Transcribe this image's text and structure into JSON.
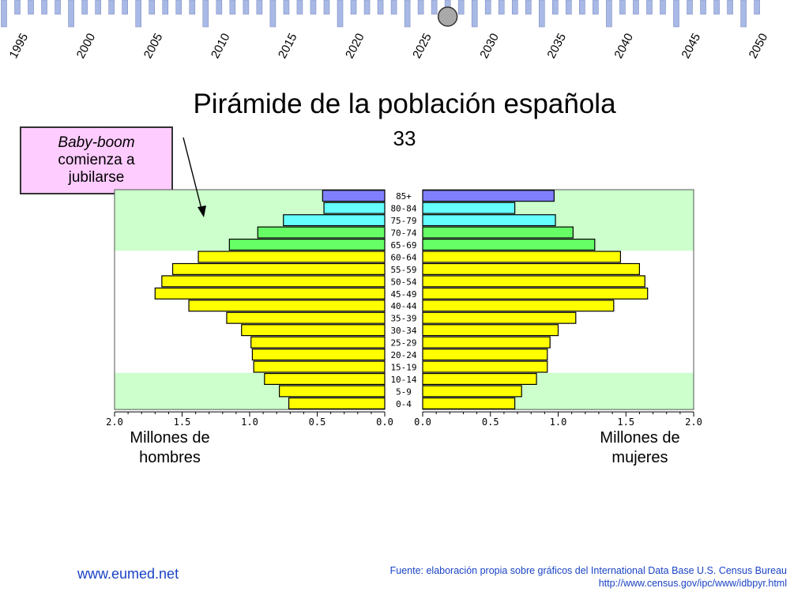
{
  "timeline": {
    "years": [
      "1995",
      "2000",
      "2005",
      "2010",
      "2015",
      "2020",
      "2025",
      "2030",
      "2035",
      "2040",
      "2045",
      "2050"
    ],
    "marker_year_index": 6
  },
  "title": "Pirámide de la población española",
  "subtitle": "33",
  "callout": {
    "line1": "Baby-boom",
    "line2": "comienza a",
    "line3": "jubilarse"
  },
  "axis": {
    "left_caption_l1": "Millones de",
    "left_caption_l2": "hombres",
    "right_caption_l1": "Millones de",
    "right_caption_l2": "mujeres"
  },
  "footer": {
    "site": "www.eumed.net",
    "source_l1": "Fuente: elaboración propia sobre gráficos del International Data Base U.S. Census Bureau",
    "source_l2": "http://www.census.gov/ipc/www/idbpyr.html"
  },
  "colors": {
    "blue": "#8080ff",
    "cyan": "#66ffff",
    "green": "#66ff66",
    "yellow": "#ffff00",
    "band": "#ccffcc",
    "callout_bg": "#ffccff",
    "timeline": "#a9b9e6",
    "link": "#1a43c4"
  },
  "chart_data": {
    "type": "bar",
    "orientation": "horizontal-pyramid",
    "title": "Pirámide de la población española",
    "xlabel_left": "Millones de hombres",
    "xlabel_right": "Millones de mujeres",
    "xlim": [
      0,
      2.0
    ],
    "xticks": [
      "2.0",
      "1.5",
      "1.0",
      "0.5",
      "0.0"
    ],
    "xticks_right": [
      "0.0",
      "0.5",
      "1.0",
      "1.5",
      "2.0"
    ],
    "categories": [
      "85+",
      "80-84",
      "75-79",
      "70-74",
      "65-69",
      "60-64",
      "55-59",
      "50-54",
      "45-49",
      "40-44",
      "35-39",
      "30-34",
      "25-29",
      "20-24",
      "15-19",
      "10-14",
      "5-9",
      "0-4"
    ],
    "series": [
      {
        "name": "Millones de hombres",
        "values": [
          0.46,
          0.45,
          0.75,
          0.94,
          1.15,
          1.38,
          1.57,
          1.65,
          1.7,
          1.45,
          1.17,
          1.06,
          0.99,
          0.98,
          0.97,
          0.89,
          0.78,
          0.71
        ]
      },
      {
        "name": "Millones de mujeres",
        "values": [
          0.97,
          0.68,
          0.98,
          1.11,
          1.27,
          1.46,
          1.6,
          1.64,
          1.66,
          1.41,
          1.13,
          1.0,
          0.94,
          0.92,
          0.92,
          0.84,
          0.73,
          0.68
        ]
      }
    ],
    "bar_colors": [
      "blue",
      "cyan",
      "cyan",
      "green",
      "green",
      "yellow",
      "yellow",
      "yellow",
      "yellow",
      "yellow",
      "yellow",
      "yellow",
      "yellow",
      "yellow",
      "yellow",
      "yellow",
      "yellow",
      "yellow"
    ],
    "grid": false,
    "background_bands": [
      {
        "from_category": "85+",
        "to_category": "65-69"
      },
      {
        "from_category": "10-14",
        "to_category": "0-4"
      }
    ]
  }
}
